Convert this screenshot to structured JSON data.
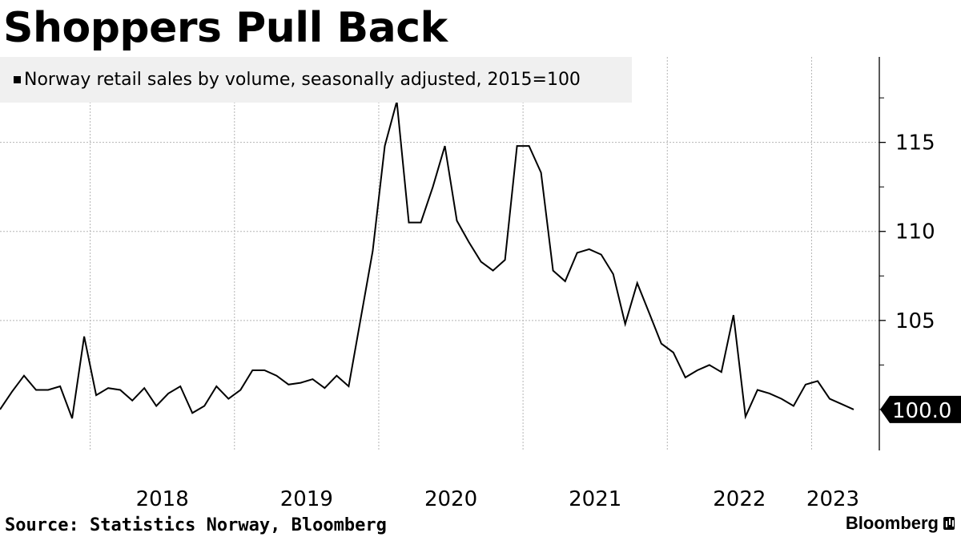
{
  "title": "Shoppers Pull Back",
  "legend": {
    "label": "Norway retail sales by volume, seasonally adjusted, 2015=100"
  },
  "source": "Source: Statistics Norway, Bloomberg",
  "brand": "Bloomberg",
  "chart_data": {
    "type": "line",
    "title": "Shoppers Pull Back",
    "xlabel": "",
    "ylabel": "",
    "ylim": [
      97.7,
      119.8
    ],
    "y_ticks": [
      105,
      110,
      115
    ],
    "x_ticks": [
      "2018",
      "2019",
      "2020",
      "2021",
      "2022",
      "2023"
    ],
    "start": "2017-05",
    "end": "2023-05",
    "last_value_label": "100.0",
    "series": [
      {
        "name": "Norway retail sales by volume, seasonally adjusted, 2015=100",
        "color": "#000000",
        "values": [
          100.0,
          101.0,
          101.9,
          101.1,
          101.1,
          101.3,
          99.5,
          104.1,
          100.8,
          101.2,
          101.1,
          100.5,
          101.2,
          100.2,
          100.9,
          101.3,
          99.8,
          100.2,
          101.3,
          100.6,
          101.1,
          102.2,
          102.2,
          101.9,
          101.4,
          101.5,
          101.7,
          101.2,
          101.9,
          101.3,
          105.1,
          108.9,
          114.8,
          117.3,
          110.5,
          110.5,
          112.5,
          114.8,
          110.6,
          109.4,
          108.3,
          107.8,
          108.4,
          114.8,
          114.8,
          113.3,
          107.8,
          107.2,
          108.8,
          109.0,
          108.7,
          107.6,
          104.8,
          107.1,
          105.4,
          103.7,
          103.2,
          101.8,
          102.2,
          102.5,
          102.1,
          105.3,
          99.6,
          101.1,
          100.9,
          100.6,
          100.2,
          101.4,
          101.6,
          100.6,
          100.3,
          100.0
        ]
      }
    ]
  }
}
